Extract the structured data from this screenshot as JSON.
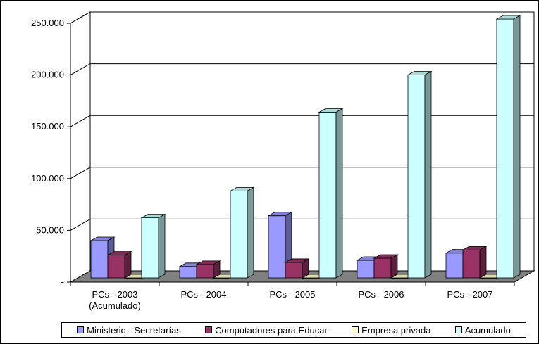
{
  "chart_data": {
    "type": "bar",
    "categories": [
      "PCs - 2003\n(Acumulado)",
      "PCs - 2004",
      "PCs - 2005",
      "PCs - 2006",
      "PCs - 2007"
    ],
    "series": [
      {
        "name": "Ministerio - Secretarías",
        "values": [
          36000,
          11000,
          60000,
          17000,
          24000
        ],
        "color": "#9999ff"
      },
      {
        "name": "Computadores para Educar",
        "values": [
          22000,
          13000,
          15000,
          19000,
          27000
        ],
        "color": "#993366"
      },
      {
        "name": "Empresa privada",
        "values": [
          0,
          0,
          0,
          0,
          0
        ],
        "color": "#ffffcc"
      },
      {
        "name": "Acumulado",
        "values": [
          58000,
          84000,
          160000,
          196000,
          250000
        ],
        "color": "#ccffff"
      }
    ],
    "y_ticks": [
      "-",
      "50.000",
      "100.000",
      "150.000",
      "200.000",
      "250.000"
    ],
    "ylim": [
      0,
      250000
    ],
    "legend_position": "bottom",
    "grid": true,
    "style": "3d-bar",
    "wall_color": "#ffffff",
    "floor_color": "#808080"
  }
}
